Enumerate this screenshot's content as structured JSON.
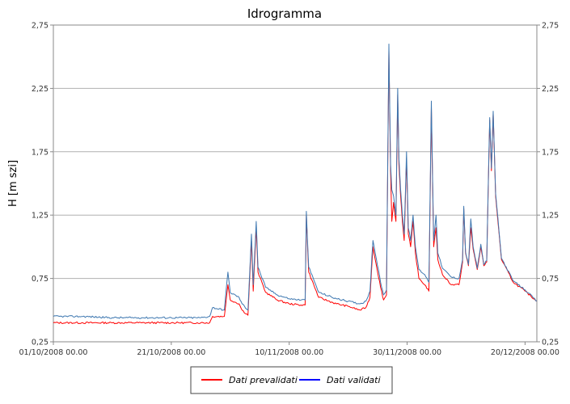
{
  "chart_data": {
    "type": "line",
    "title": "Idrogramma",
    "ylabel": "H  [m szi]",
    "xlabel": "",
    "ylim": [
      0.25,
      2.75
    ],
    "y_ticks": [
      "0,25",
      "0,75",
      "1,25",
      "1,75",
      "2,25",
      "2,75"
    ],
    "y_tick_values": [
      0.25,
      0.75,
      1.25,
      1.75,
      2.25,
      2.75
    ],
    "x_range_days": [
      0,
      82
    ],
    "x_ticks": [
      "01/10/2008 00.00",
      "21/10/2008 00.00",
      "10/11/2008 00.00",
      "30/11/2008 00.00",
      "20/12/2008 00.00"
    ],
    "x_tick_days": [
      0,
      20,
      40,
      60,
      80
    ],
    "grid": "horizontal",
    "legend_position": "bottom",
    "series": [
      {
        "name": "Dati prevalidati",
        "color": "#ff0000",
        "points": [
          [
            0,
            0.4
          ],
          [
            5,
            0.4
          ],
          [
            10,
            0.4
          ],
          [
            15,
            0.4
          ],
          [
            20,
            0.4
          ],
          [
            25,
            0.4
          ],
          [
            26.5,
            0.4
          ],
          [
            27,
            0.45
          ],
          [
            29,
            0.45
          ],
          [
            29.6,
            0.7
          ],
          [
            30,
            0.58
          ],
          [
            31.5,
            0.55
          ],
          [
            32,
            0.5
          ],
          [
            33,
            0.46
          ],
          [
            33.6,
            1.05
          ],
          [
            33.9,
            0.65
          ],
          [
            34.4,
            1.15
          ],
          [
            34.7,
            0.8
          ],
          [
            36,
            0.64
          ],
          [
            38,
            0.58
          ],
          [
            40,
            0.55
          ],
          [
            42,
            0.54
          ],
          [
            42.7,
            0.54
          ],
          [
            42.9,
            1.25
          ],
          [
            43.3,
            0.8
          ],
          [
            45,
            0.6
          ],
          [
            48,
            0.55
          ],
          [
            50,
            0.53
          ],
          [
            52,
            0.5
          ],
          [
            53,
            0.52
          ],
          [
            53.7,
            0.6
          ],
          [
            54.2,
            1.0
          ],
          [
            54.8,
            0.85
          ],
          [
            55.5,
            0.68
          ],
          [
            56,
            0.58
          ],
          [
            56.5,
            0.62
          ],
          [
            56.9,
            2.55
          ],
          [
            57.2,
            1.6
          ],
          [
            57.4,
            1.2
          ],
          [
            57.7,
            1.35
          ],
          [
            58.1,
            1.2
          ],
          [
            58.4,
            2.2
          ],
          [
            58.6,
            1.65
          ],
          [
            58.9,
            1.4
          ],
          [
            59.2,
            1.2
          ],
          [
            59.5,
            1.05
          ],
          [
            59.9,
            1.7
          ],
          [
            60.2,
            1.1
          ],
          [
            60.6,
            1.0
          ],
          [
            61,
            1.2
          ],
          [
            61.4,
            0.95
          ],
          [
            62,
            0.75
          ],
          [
            63,
            0.7
          ],
          [
            63.7,
            0.65
          ],
          [
            64.1,
            2.1
          ],
          [
            64.5,
            1.0
          ],
          [
            64.9,
            1.15
          ],
          [
            65.2,
            0.9
          ],
          [
            66,
            0.78
          ],
          [
            67.5,
            0.7
          ],
          [
            68.8,
            0.7
          ],
          [
            69.4,
            0.88
          ],
          [
            69.6,
            1.3
          ],
          [
            69.9,
            0.95
          ],
          [
            70.4,
            0.85
          ],
          [
            70.8,
            1.15
          ],
          [
            71.2,
            0.98
          ],
          [
            71.9,
            0.82
          ],
          [
            72.5,
            1.0
          ],
          [
            73,
            0.85
          ],
          [
            73.5,
            0.88
          ],
          [
            74,
            2.0
          ],
          [
            74.3,
            1.6
          ],
          [
            74.6,
            2.05
          ],
          [
            75,
            1.4
          ],
          [
            76,
            0.9
          ],
          [
            78,
            0.72
          ],
          [
            80,
            0.65
          ],
          [
            82,
            0.57
          ]
        ]
      },
      {
        "name": "Dati validati",
        "color": "#0000ff",
        "points": [
          [
            0,
            0.45
          ],
          [
            5,
            0.45
          ],
          [
            10,
            0.44
          ],
          [
            15,
            0.44
          ],
          [
            20,
            0.44
          ],
          [
            25,
            0.44
          ],
          [
            26.5,
            0.45
          ],
          [
            27,
            0.52
          ],
          [
            29,
            0.5
          ],
          [
            29.6,
            0.8
          ],
          [
            30,
            0.64
          ],
          [
            31.5,
            0.6
          ],
          [
            32,
            0.55
          ],
          [
            33,
            0.5
          ],
          [
            33.6,
            1.1
          ],
          [
            33.9,
            0.7
          ],
          [
            34.4,
            1.2
          ],
          [
            34.7,
            0.84
          ],
          [
            36,
            0.68
          ],
          [
            38,
            0.62
          ],
          [
            40,
            0.59
          ],
          [
            42,
            0.58
          ],
          [
            42.7,
            0.58
          ],
          [
            42.9,
            1.28
          ],
          [
            43.3,
            0.84
          ],
          [
            45,
            0.64
          ],
          [
            48,
            0.59
          ],
          [
            50,
            0.57
          ],
          [
            52,
            0.55
          ],
          [
            53,
            0.57
          ],
          [
            53.7,
            0.65
          ],
          [
            54.2,
            1.05
          ],
          [
            54.8,
            0.9
          ],
          [
            55.5,
            0.72
          ],
          [
            56,
            0.62
          ],
          [
            56.5,
            0.66
          ],
          [
            56.9,
            2.6
          ],
          [
            57.2,
            1.65
          ],
          [
            57.4,
            1.45
          ],
          [
            57.7,
            1.4
          ],
          [
            58.1,
            1.25
          ],
          [
            58.4,
            2.25
          ],
          [
            58.6,
            1.7
          ],
          [
            58.9,
            1.45
          ],
          [
            59.2,
            1.25
          ],
          [
            59.5,
            1.1
          ],
          [
            59.9,
            1.75
          ],
          [
            60.2,
            1.15
          ],
          [
            60.6,
            1.05
          ],
          [
            61,
            1.25
          ],
          [
            61.4,
            1.0
          ],
          [
            62,
            0.82
          ],
          [
            63,
            0.78
          ],
          [
            63.7,
            0.72
          ],
          [
            64.1,
            2.15
          ],
          [
            64.5,
            1.05
          ],
          [
            64.9,
            1.25
          ],
          [
            65.2,
            0.95
          ],
          [
            66,
            0.83
          ],
          [
            67.5,
            0.76
          ],
          [
            68.8,
            0.75
          ],
          [
            69.4,
            0.9
          ],
          [
            69.6,
            1.32
          ],
          [
            69.9,
            0.96
          ],
          [
            70.4,
            0.86
          ],
          [
            70.8,
            1.22
          ],
          [
            71.2,
            1.0
          ],
          [
            71.9,
            0.83
          ],
          [
            72.5,
            1.02
          ],
          [
            73,
            0.86
          ],
          [
            73.5,
            0.89
          ],
          [
            74,
            2.02
          ],
          [
            74.3,
            1.62
          ],
          [
            74.6,
            2.07
          ],
          [
            75,
            1.42
          ],
          [
            76,
            0.91
          ],
          [
            78,
            0.73
          ],
          [
            80,
            0.66
          ],
          [
            82,
            0.57
          ]
        ]
      }
    ]
  }
}
